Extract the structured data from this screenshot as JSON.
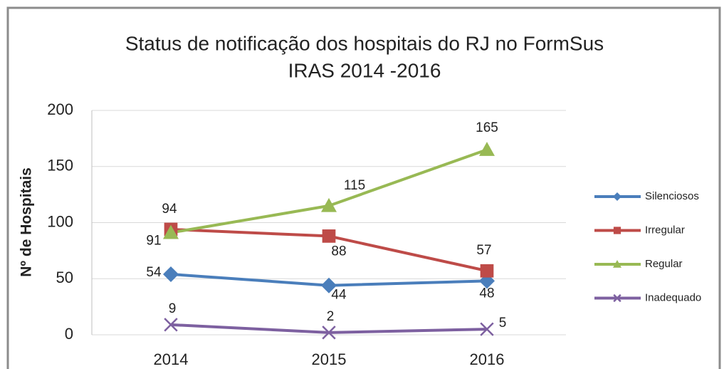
{
  "chart_data": {
    "type": "line",
    "title": "Status de notificação dos hospitais do RJ no FormSus",
    "subtitle": "IRAS  2014 -2016",
    "y_label": "Nº de Hospitais",
    "categories": [
      "2014",
      "2015",
      "2016"
    ],
    "series": [
      {
        "name": "Silenciosos",
        "color": "#4a7ebb",
        "marker": "diamond",
        "values": [
          54,
          44,
          48
        ]
      },
      {
        "name": "Irregular",
        "color": "#be4b48",
        "marker": "square",
        "values": [
          94,
          88,
          57
        ]
      },
      {
        "name": "Regular",
        "color": "#98b954",
        "marker": "triangle",
        "values": [
          91,
          115,
          165
        ]
      },
      {
        "name": "Inadequado",
        "color": "#7d60a0",
        "marker": "x",
        "values": [
          9,
          2,
          5
        ]
      }
    ],
    "ylim": [
      0,
      200
    ],
    "yticks": [
      0,
      50,
      100,
      150,
      200
    ],
    "grid": true,
    "legend": "right"
  }
}
